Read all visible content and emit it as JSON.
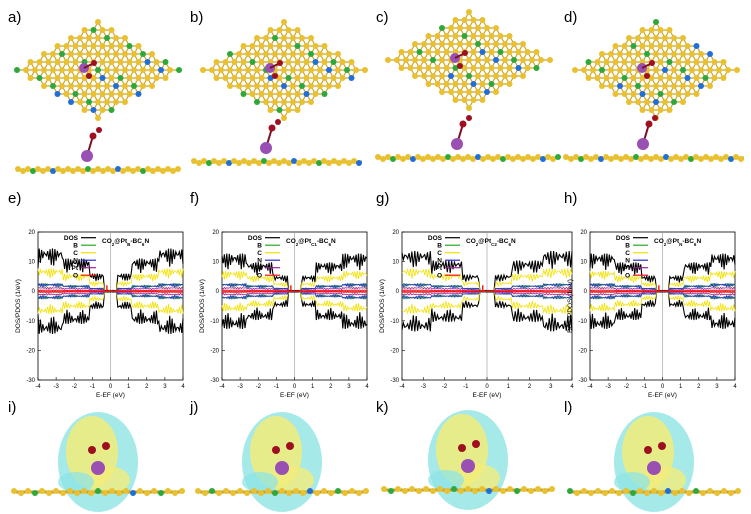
{
  "panel_labels": {
    "structure_top": [
      "a)",
      "b)",
      "c)",
      "d)"
    ],
    "dos": [
      "e)",
      "f)",
      "g)",
      "h)"
    ],
    "density": [
      "i)",
      "j)",
      "k)",
      "l)"
    ]
  },
  "structure_colors": {
    "carbon": "#e8c030",
    "boron": "#2fa83a",
    "nitrogen": "#1f6fd6",
    "platinum": "#9a4fb3",
    "oxygen": "#9e1020",
    "isosurface_positive": "#f2ec7a",
    "isosurface_negative": "#8fe4e4"
  },
  "chart_data": [
    {
      "type": "line",
      "panel": "e)",
      "title": "CO2@PtB-BC6N",
      "title_parts": {
        "prefix": "CO",
        "sub1": "2",
        "mid": "@Pt",
        "sub2": "B",
        "suffix": "-BC",
        "sub3": "6",
        "end": "N"
      },
      "xlabel": "E-EF (eV)",
      "ylabel": "DOS/PDOS (1/eV)",
      "xlim": [
        -4,
        4
      ],
      "ylim": [
        -30,
        20
      ],
      "xticks": [
        -4,
        -3,
        -2,
        -1,
        0,
        1,
        2,
        3,
        4
      ],
      "yticks": [
        20,
        10,
        0,
        -10,
        -20,
        -30
      ],
      "series": [
        {
          "name": "DOS",
          "color": "#000000",
          "peak": 17
        },
        {
          "name": "B",
          "color": "#22aa22",
          "peak": 3
        },
        {
          "name": "C",
          "color": "#f2e200",
          "peak": 9
        },
        {
          "name": "N",
          "color": "#2a2ad8",
          "peak": 3
        },
        {
          "name": "Pt",
          "color": "#a020a0",
          "peak": 1.5
        },
        {
          "name": "O",
          "color": "#ee1111",
          "peak": 0.5
        }
      ]
    },
    {
      "type": "line",
      "panel": "f)",
      "title": "CO2@PtC1-BC6N",
      "title_parts": {
        "prefix": "CO",
        "sub1": "2",
        "mid": "@Pt",
        "sub2": "C1",
        "suffix": "-BC",
        "sub3": "6",
        "end": "N"
      },
      "xlabel": "E-EF (eV)",
      "ylabel": "DOS/PDOS (1/eV)",
      "xlim": [
        -4,
        4
      ],
      "ylim": [
        -30,
        20
      ],
      "xticks": [
        -4,
        -3,
        -2,
        -1,
        0,
        1,
        2,
        3,
        4
      ],
      "yticks": [
        20,
        10,
        0,
        -10,
        -20,
        -30
      ],
      "series": [
        {
          "name": "DOS",
          "color": "#000000",
          "peak": 15
        },
        {
          "name": "B",
          "color": "#22aa22",
          "peak": 3
        },
        {
          "name": "C",
          "color": "#f2e200",
          "peak": 8
        },
        {
          "name": "N",
          "color": "#2a2ad8",
          "peak": 3
        },
        {
          "name": "Pt",
          "color": "#a020a0",
          "peak": 1.5
        },
        {
          "name": "O",
          "color": "#ee1111",
          "peak": 0.5
        }
      ]
    },
    {
      "type": "line",
      "panel": "g)",
      "title": "CO2@PtC2-BC6N",
      "title_parts": {
        "prefix": "CO",
        "sub1": "2",
        "mid": "@Pt",
        "sub2": "C2",
        "suffix": "-BC",
        "sub3": "6",
        "end": "N"
      },
      "xlabel": "E-EF (eV)",
      "ylabel": "DOS/PDOS (1/eV)",
      "xlim": [
        -4,
        4
      ],
      "ylim": [
        -30,
        20
      ],
      "xticks": [
        -4,
        -3,
        -2,
        -1,
        0,
        1,
        2,
        3,
        4
      ],
      "yticks": [
        20,
        10,
        0,
        -10,
        -20,
        -30
      ],
      "series": [
        {
          "name": "DOS",
          "color": "#000000",
          "peak": 16
        },
        {
          "name": "B",
          "color": "#22aa22",
          "peak": 3
        },
        {
          "name": "C",
          "color": "#f2e200",
          "peak": 9
        },
        {
          "name": "N",
          "color": "#2a2ad8",
          "peak": 3
        },
        {
          "name": "Pt",
          "color": "#a020a0",
          "peak": 1.5
        },
        {
          "name": "O",
          "color": "#ee1111",
          "peak": 0.5
        }
      ]
    },
    {
      "type": "line",
      "panel": "h)",
      "title": "CO2@PtN-BC6N",
      "title_parts": {
        "prefix": "CO",
        "sub1": "2",
        "mid": "@Pt",
        "sub2": "N",
        "suffix": "-BC",
        "sub3": "6",
        "end": "N"
      },
      "xlabel": "E-EF (eV)",
      "ylabel": "DOS/PDOS (1/eV)",
      "xlim": [
        -4,
        4
      ],
      "ylim": [
        -30,
        20
      ],
      "xticks": [
        -4,
        -3,
        -2,
        -1,
        0,
        1,
        2,
        3,
        4
      ],
      "yticks": [
        20,
        10,
        0,
        -10,
        -20,
        -30
      ],
      "series": [
        {
          "name": "DOS",
          "color": "#000000",
          "peak": 15
        },
        {
          "name": "B",
          "color": "#22aa22",
          "peak": 3
        },
        {
          "name": "C",
          "color": "#f2e200",
          "peak": 8
        },
        {
          "name": "N",
          "color": "#2a2ad8",
          "peak": 3
        },
        {
          "name": "Pt",
          "color": "#a020a0",
          "peak": 1.5
        },
        {
          "name": "O",
          "color": "#ee1111",
          "peak": 0.5
        }
      ]
    }
  ]
}
